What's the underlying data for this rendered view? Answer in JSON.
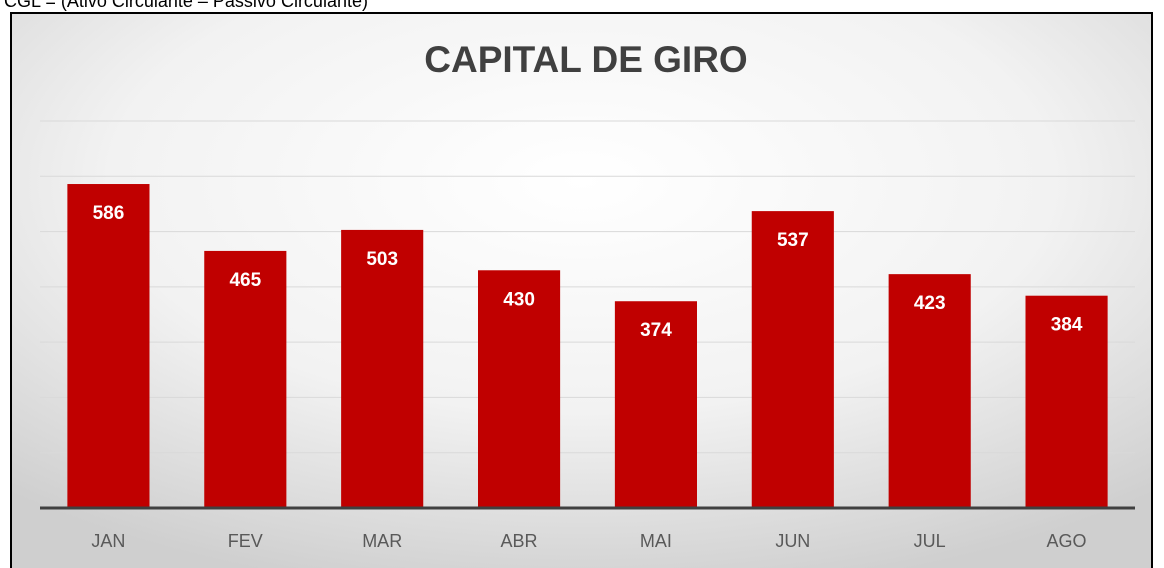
{
  "formula": "CGL = (Ativo Circulante – Passivo Circulante)",
  "chart_data": {
    "type": "bar",
    "title": "CAPITAL DE GIRO",
    "categories": [
      "JAN",
      "FEV",
      "MAR",
      "ABR",
      "MAI",
      "JUN",
      "JUL",
      "AGO"
    ],
    "values": [
      586,
      465,
      503,
      430,
      374,
      537,
      423,
      384
    ],
    "color": "#c00000",
    "ylim": [
      0,
      700
    ],
    "yticks": [
      0,
      100,
      200,
      300,
      400,
      500,
      600,
      700
    ],
    "grid": true,
    "data_labels": true
  }
}
